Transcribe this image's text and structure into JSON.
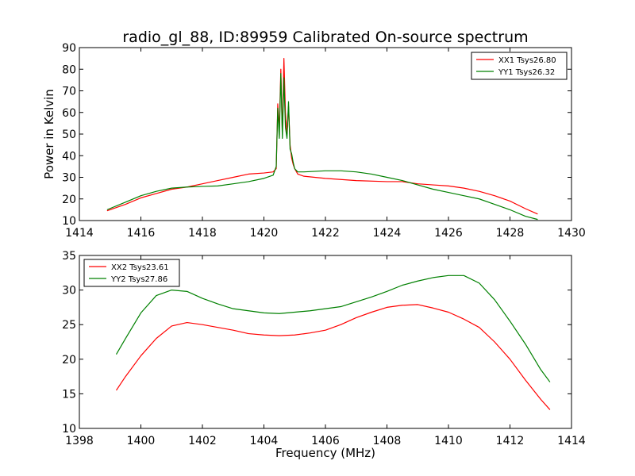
{
  "title": "radio_gl_88, ID:89959 Calibrated On-source spectrum",
  "chart_data": [
    {
      "type": "line",
      "ylabel": "Power in Kelvin",
      "xlabel": "",
      "xlim": [
        1414,
        1430
      ],
      "ylim": [
        10,
        90
      ],
      "xticks": [
        "1414",
        "1416",
        "1418",
        "1420",
        "1422",
        "1424",
        "1426",
        "1428",
        "1430"
      ],
      "yticks": [
        "10",
        "20",
        "30",
        "40",
        "50",
        "60",
        "70",
        "80",
        "90"
      ],
      "grid": false,
      "legend_position": "top-right",
      "series": [
        {
          "name": "XX1 Tsys26.80",
          "color": "#ff0000",
          "x": [
            1414.9,
            1415.5,
            1416,
            1416.5,
            1417,
            1417.5,
            1418,
            1418.5,
            1419,
            1419.5,
            1420,
            1420.3,
            1420.4,
            1420.45,
            1420.5,
            1420.55,
            1420.6,
            1420.65,
            1420.7,
            1420.75,
            1420.8,
            1420.85,
            1420.9,
            1420.95,
            1421,
            1421.1,
            1421.3,
            1422,
            1423,
            1424,
            1424.5,
            1425,
            1425.5,
            1426,
            1426.5,
            1427,
            1427.5,
            1428,
            1428.5,
            1428.9
          ],
          "y": [
            14.5,
            17.5,
            20.5,
            22.5,
            24.5,
            25.5,
            27,
            28.5,
            30,
            31.5,
            32,
            32.5,
            34,
            64,
            52,
            80,
            50,
            85,
            60,
            50,
            63,
            45,
            39,
            36,
            34,
            31.5,
            30.5,
            29.5,
            28.5,
            28,
            28,
            27,
            26.5,
            26,
            25,
            23.5,
            21.5,
            19,
            15.5,
            13
          ]
        },
        {
          "name": "YY1 Tsys26.32",
          "color": "#008000",
          "x": [
            1414.9,
            1415.5,
            1416,
            1416.5,
            1417,
            1417.5,
            1418,
            1418.5,
            1419,
            1419.5,
            1420,
            1420.3,
            1420.4,
            1420.45,
            1420.5,
            1420.55,
            1420.6,
            1420.65,
            1420.7,
            1420.75,
            1420.8,
            1420.85,
            1420.9,
            1420.95,
            1421,
            1421.1,
            1421.3,
            1422,
            1422.5,
            1423,
            1423.5,
            1424,
            1424.5,
            1425,
            1425.5,
            1426,
            1426.5,
            1427,
            1427.5,
            1428,
            1428.5,
            1428.9
          ],
          "y": [
            15,
            18.5,
            21.5,
            23.5,
            25,
            25.5,
            25.8,
            26,
            27,
            28,
            29.5,
            31,
            35,
            62,
            48,
            78,
            48,
            76,
            53,
            48,
            65,
            43,
            41,
            37,
            34,
            32.5,
            32.5,
            33,
            33,
            32.5,
            31.5,
            30,
            28.5,
            26.5,
            24.5,
            23,
            21.5,
            20,
            17.5,
            15,
            12,
            10.5
          ]
        }
      ]
    },
    {
      "type": "line",
      "ylabel": "",
      "xlabel": "Frequency (MHz)",
      "xlim": [
        1398,
        1414
      ],
      "ylim": [
        10,
        35
      ],
      "xticks": [
        "1398",
        "1400",
        "1402",
        "1404",
        "1406",
        "1408",
        "1410",
        "1412",
        "1414"
      ],
      "yticks": [
        "10",
        "15",
        "20",
        "25",
        "30",
        "35"
      ],
      "grid": false,
      "legend_position": "top-left",
      "series": [
        {
          "name": "XX2 Tsys23.61",
          "color": "#ff0000",
          "x": [
            1399.2,
            1399.5,
            1400,
            1400.5,
            1401,
            1401.5,
            1402,
            1402.5,
            1403,
            1403.5,
            1404,
            1404.5,
            1405,
            1405.5,
            1406,
            1406.5,
            1407,
            1407.5,
            1408,
            1408.5,
            1409,
            1409.5,
            1410,
            1410.5,
            1411,
            1411.5,
            1412,
            1412.5,
            1413,
            1413.3
          ],
          "y": [
            15.5,
            17.5,
            20.5,
            23,
            24.8,
            25.3,
            25,
            24.6,
            24.2,
            23.7,
            23.5,
            23.4,
            23.5,
            23.8,
            24.2,
            25,
            26,
            26.8,
            27.5,
            27.8,
            27.9,
            27.4,
            26.8,
            25.8,
            24.6,
            22.5,
            20,
            17,
            14.2,
            12.7
          ]
        },
        {
          "name": "YY2 Tsys27.86",
          "color": "#008000",
          "x": [
            1399.2,
            1399.5,
            1400,
            1400.5,
            1401,
            1401.5,
            1402,
            1402.5,
            1403,
            1403.5,
            1404,
            1404.5,
            1405,
            1405.5,
            1406,
            1406.5,
            1407,
            1407.5,
            1408,
            1408.5,
            1409,
            1409.5,
            1410,
            1410.5,
            1411,
            1411.5,
            1412,
            1412.5,
            1413,
            1413.3
          ],
          "y": [
            20.7,
            23,
            26.7,
            29.2,
            30,
            29.8,
            28.8,
            28,
            27.3,
            27,
            26.7,
            26.6,
            26.8,
            27,
            27.3,
            27.6,
            28.3,
            29,
            29.8,
            30.7,
            31.3,
            31.8,
            32.1,
            32.1,
            31,
            28.6,
            25.5,
            22.2,
            18.5,
            16.7
          ]
        }
      ]
    }
  ]
}
